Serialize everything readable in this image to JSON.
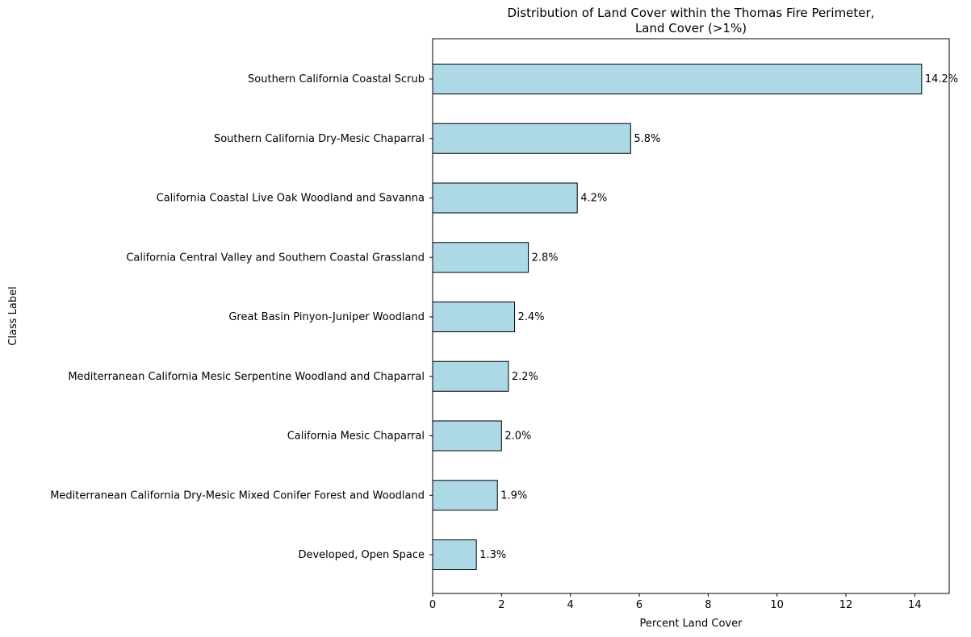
{
  "chart_data": {
    "type": "bar",
    "orientation": "horizontal",
    "title": [
      "Distribution of Land Cover within the Thomas Fire Perimeter,",
      "Land Cover (>1%)"
    ],
    "xlabel": "Percent Land Cover",
    "ylabel": "Class Label",
    "xlim": [
      0,
      15
    ],
    "xticks": [
      0,
      2,
      4,
      6,
      8,
      10,
      12,
      14
    ],
    "grid": false,
    "bar_color": "#add8e6",
    "edge_color": "#000000",
    "categories": [
      "Southern California Coastal Scrub",
      "Southern California Dry-Mesic Chaparral",
      "California Coastal Live Oak Woodland and Savanna",
      "California Central Valley and Southern Coastal Grassland",
      "Great Basin Pinyon-Juniper Woodland",
      "Mediterranean California Mesic Serpentine Woodland and Chaparral",
      "California Mesic Chaparral",
      "Mediterranean California Dry-Mesic Mixed Conifer Forest and Woodland",
      "Developed, Open Space"
    ],
    "values": [
      14.2,
      5.75,
      4.2,
      2.78,
      2.38,
      2.2,
      2.0,
      1.88,
      1.27
    ],
    "data_labels": [
      "14.2%",
      "5.8%",
      "4.2%",
      "2.8%",
      "2.4%",
      "2.2%",
      "2.0%",
      "1.9%",
      "1.3%"
    ]
  }
}
